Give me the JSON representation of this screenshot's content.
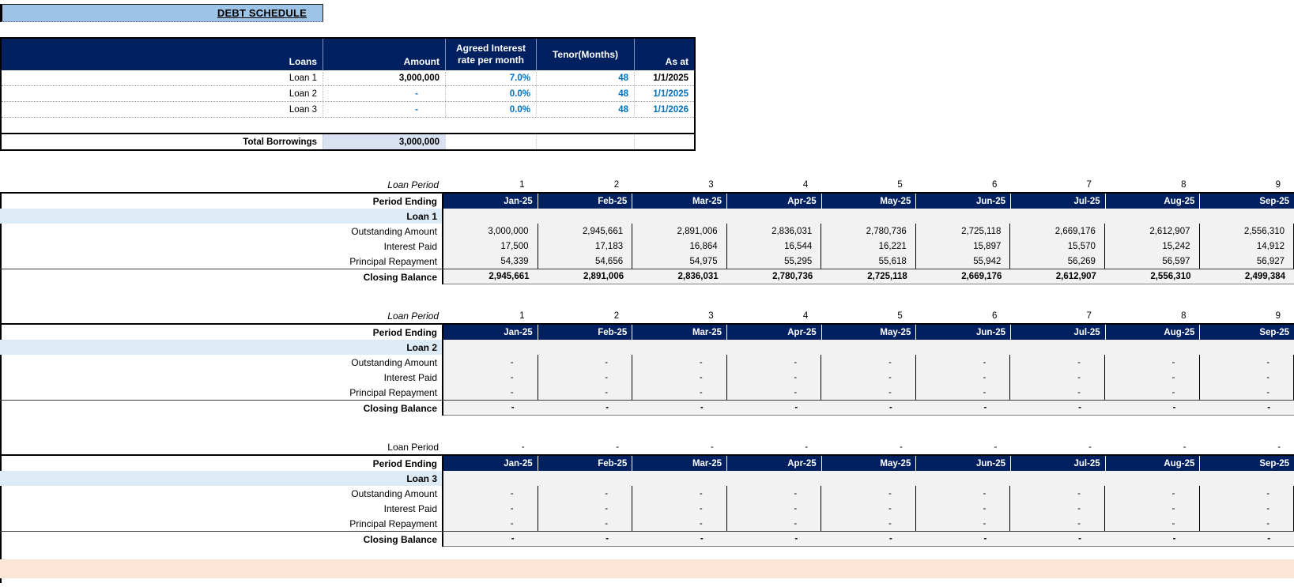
{
  "title": "DEBT SCHEDULE",
  "colors": {
    "header_navy": "#002060",
    "title_bar_blue": "#9DC3E6",
    "loan_row_blue": "#DDEBF7",
    "total_cell_lavender": "#D9E1F2",
    "data_area_gray": "#F2F2F2",
    "footer_peach": "#FCE4D6",
    "input_text_blue": "#0070C0"
  },
  "loans_table": {
    "headers": [
      "Loans",
      "Amount",
      "Agreed Interest rate per month",
      "Tenor(Months)",
      "As at"
    ],
    "rows": [
      {
        "label": "Loan 1",
        "amount": "3,000,000",
        "rate": "7.0%",
        "tenor": "48",
        "as_at": "1/1/2025",
        "amount_blue": false,
        "date_blue": false
      },
      {
        "label": "Loan 2",
        "amount": "-",
        "rate": "0.0%",
        "tenor": "48",
        "as_at": "1/1/2025",
        "amount_blue": true,
        "date_blue": true
      },
      {
        "label": "Loan 3",
        "amount": "-",
        "rate": "0.0%",
        "tenor": "48",
        "as_at": "1/1/2026",
        "amount_blue": true,
        "date_blue": true
      }
    ],
    "total_row": {
      "label": "Total Borrowings",
      "amount": "3,000,000"
    }
  },
  "period_tables": [
    {
      "loan_name": "Loan 1",
      "period_label": "Loan Period",
      "period_label_italic": true,
      "periods": [
        "1",
        "2",
        "3",
        "4",
        "5",
        "6",
        "7",
        "8",
        "9"
      ],
      "period_ending_label": "Period Ending",
      "months": [
        "Jan-25",
        "Feb-25",
        "Mar-25",
        "Apr-25",
        "May-25",
        "Jun-25",
        "Jul-25",
        "Aug-25",
        "Sep-25"
      ],
      "rows": [
        {
          "label": "Outstanding Amount",
          "values": [
            "3,000,000",
            "2,945,661",
            "2,891,006",
            "2,836,031",
            "2,780,736",
            "2,725,118",
            "2,669,176",
            "2,612,907",
            "2,556,310"
          ]
        },
        {
          "label": "Interest Paid",
          "values": [
            "17,500",
            "17,183",
            "16,864",
            "16,544",
            "16,221",
            "15,897",
            "15,570",
            "15,242",
            "14,912"
          ]
        },
        {
          "label": "Principal Repayment",
          "values": [
            "54,339",
            "54,656",
            "54,975",
            "55,295",
            "55,618",
            "55,942",
            "56,269",
            "56,597",
            "56,927"
          ]
        }
      ],
      "closing_row": {
        "label": "Closing Balance",
        "values": [
          "2,945,661",
          "2,891,006",
          "2,836,031",
          "2,780,736",
          "2,725,118",
          "2,669,176",
          "2,612,907",
          "2,556,310",
          "2,499,384"
        ]
      }
    },
    {
      "loan_name": "Loan 2",
      "period_label": "Loan Period",
      "period_label_italic": true,
      "periods": [
        "1",
        "2",
        "3",
        "4",
        "5",
        "6",
        "7",
        "8",
        "9"
      ],
      "period_ending_label": "Period Ending",
      "months": [
        "Jan-25",
        "Feb-25",
        "Mar-25",
        "Apr-25",
        "May-25",
        "Jun-25",
        "Jul-25",
        "Aug-25",
        "Sep-25"
      ],
      "rows": [
        {
          "label": "Outstanding Amount",
          "values": [
            "-",
            "-",
            "-",
            "-",
            "-",
            "-",
            "-",
            "-",
            "-"
          ]
        },
        {
          "label": "Interest Paid",
          "values": [
            "-",
            "-",
            "-",
            "-",
            "-",
            "-",
            "-",
            "-",
            "-"
          ]
        },
        {
          "label": "Principal Repayment",
          "values": [
            "-",
            "-",
            "-",
            "-",
            "-",
            "-",
            "-",
            "-",
            "-"
          ]
        }
      ],
      "closing_row": {
        "label": "Closing Balance",
        "values": [
          "-",
          "-",
          "-",
          "-",
          "-",
          "-",
          "-",
          "-",
          "-"
        ]
      }
    },
    {
      "loan_name": "Loan 3",
      "period_label": "Loan Period",
      "period_label_italic": false,
      "periods": [
        "-",
        "-",
        "-",
        "-",
        "-",
        "-",
        "-",
        "-",
        "-"
      ],
      "period_ending_label": "Period Ending",
      "months": [
        "Jan-25",
        "Feb-25",
        "Mar-25",
        "Apr-25",
        "May-25",
        "Jun-25",
        "Jul-25",
        "Aug-25",
        "Sep-25"
      ],
      "rows": [
        {
          "label": "Outstanding Amount",
          "values": [
            "-",
            "-",
            "-",
            "-",
            "-",
            "-",
            "-",
            "-",
            "-"
          ]
        },
        {
          "label": "Interest Paid",
          "values": [
            "-",
            "-",
            "-",
            "-",
            "-",
            "-",
            "-",
            "-",
            "-"
          ]
        },
        {
          "label": "Principal Repayment",
          "values": [
            "-",
            "-",
            "-",
            "-",
            "-",
            "-",
            "-",
            "-",
            "-"
          ]
        }
      ],
      "closing_row": {
        "label": "Closing Balance",
        "values": [
          "-",
          "-",
          "-",
          "-",
          "-",
          "-",
          "-",
          "-",
          "-"
        ]
      }
    }
  ]
}
